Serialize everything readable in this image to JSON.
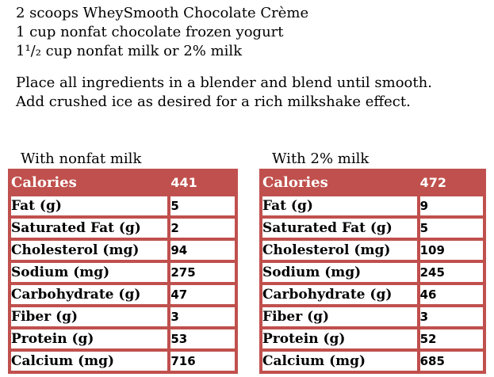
{
  "colors": {
    "accent": "#C0504D",
    "header_text": "#FFFFFF",
    "body_text": "#000000",
    "row_background": "#FFFFFF"
  },
  "recipe": {
    "ingredients": [
      "2 scoops WheySmooth Chocolate Crème",
      "1 cup nonfat chocolate frozen yogurt",
      "1¹/₂ cup nonfat milk or 2% milk"
    ],
    "instructions": [
      "Place all ingredients in a blender and blend until smooth.",
      "Add crushed ice as desired for a rich milkshake effect."
    ]
  },
  "tables": [
    {
      "title": "With nonfat milk",
      "header": {
        "label": "Calories",
        "value": "441"
      },
      "rows": [
        {
          "label": "Fat (g)",
          "value": "5"
        },
        {
          "label": "Saturated Fat (g)",
          "value": "2"
        },
        {
          "label": "Cholesterol (mg)",
          "value": "94"
        },
        {
          "label": "Sodium (mg)",
          "value": "275"
        },
        {
          "label": "Carbohydrate (g)",
          "value": "47"
        },
        {
          "label": "Fiber (g)",
          "value": "3"
        },
        {
          "label": "Protein (g)",
          "value": "53"
        },
        {
          "label": "Calcium (mg)",
          "value": "716"
        }
      ]
    },
    {
      "title": "With 2% milk",
      "header": {
        "label": "Calories",
        "value": "472"
      },
      "rows": [
        {
          "label": "Fat (g)",
          "value": "9"
        },
        {
          "label": "Saturated Fat (g)",
          "value": "5"
        },
        {
          "label": "Cholesterol (mg)",
          "value": "109"
        },
        {
          "label": "Sodium (mg)",
          "value": "245"
        },
        {
          "label": "Carbohydrate (g)",
          "value": "46"
        },
        {
          "label": "Fiber (g)",
          "value": "3"
        },
        {
          "label": "Protein (g)",
          "value": "52"
        },
        {
          "label": "Calcium (mg)",
          "value": "685"
        }
      ]
    }
  ]
}
